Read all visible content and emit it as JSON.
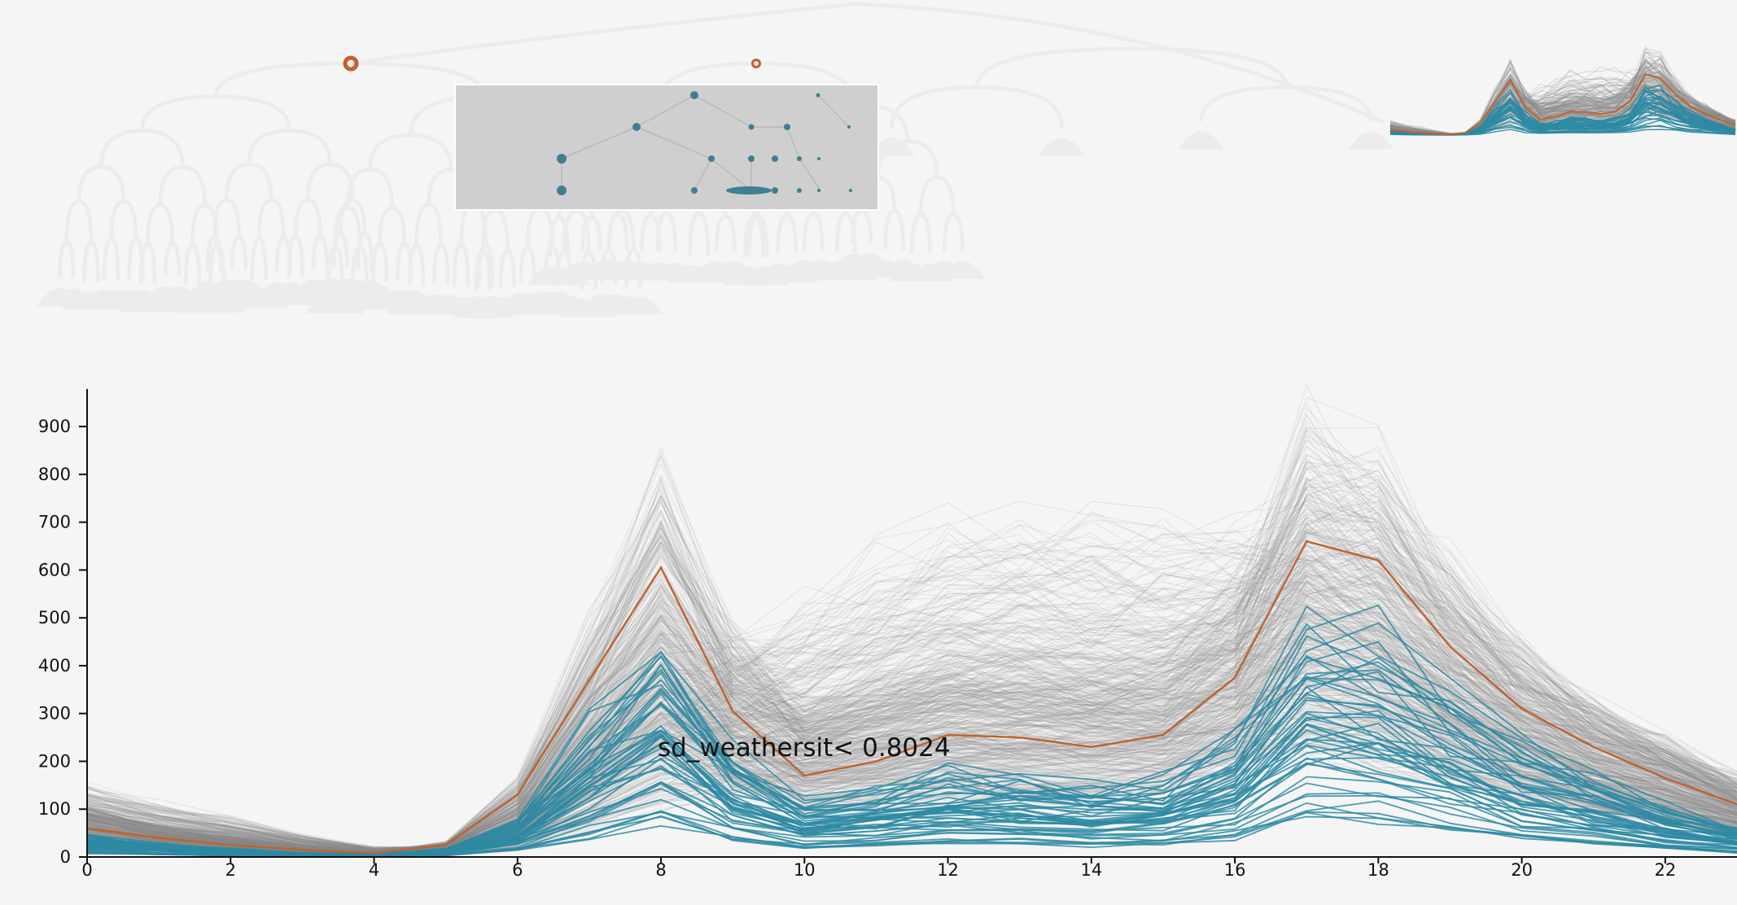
{
  "chart_data": {
    "type": "line",
    "title": "",
    "xlabel": "",
    "ylabel": "",
    "xlim": [
      0,
      23
    ],
    "ylim": [
      0,
      975
    ],
    "x_ticks": [
      0,
      2,
      4,
      6,
      8,
      10,
      12,
      14,
      16,
      18,
      20,
      22
    ],
    "x_tick_labels": [
      "0",
      "2",
      "4",
      "6",
      "8",
      "10",
      "12",
      "14",
      "16",
      "18",
      "20",
      "22"
    ],
    "y_ticks": [
      0,
      100,
      200,
      300,
      400,
      500,
      600,
      700,
      800,
      900
    ],
    "y_tick_labels": [
      "0",
      "100",
      "200",
      "300",
      "400",
      "500",
      "600",
      "700",
      "800",
      "900"
    ],
    "grid": false,
    "annotation": "sd_weathersit< 0.8024",
    "colors": {
      "background_lines": "#8a8a8a",
      "highlight_cluster": "#2e8aa3",
      "selected_line": "#c0622b",
      "tree_nodes": "#3f7f93"
    },
    "x": [
      0,
      1,
      2,
      3,
      4,
      5,
      6,
      7,
      8,
      9,
      10,
      11,
      12,
      13,
      14,
      15,
      16,
      17,
      18,
      19,
      20,
      21,
      22,
      23
    ],
    "selected_series": {
      "values": [
        60,
        40,
        25,
        15,
        8,
        25,
        130,
        370,
        605,
        305,
        170,
        200,
        255,
        250,
        230,
        255,
        375,
        660,
        620,
        440,
        310,
        230,
        165,
        110
      ]
    }
  },
  "tree": {
    "selected_node_large": "selected-node",
    "selected_node_small": "selected-node"
  }
}
